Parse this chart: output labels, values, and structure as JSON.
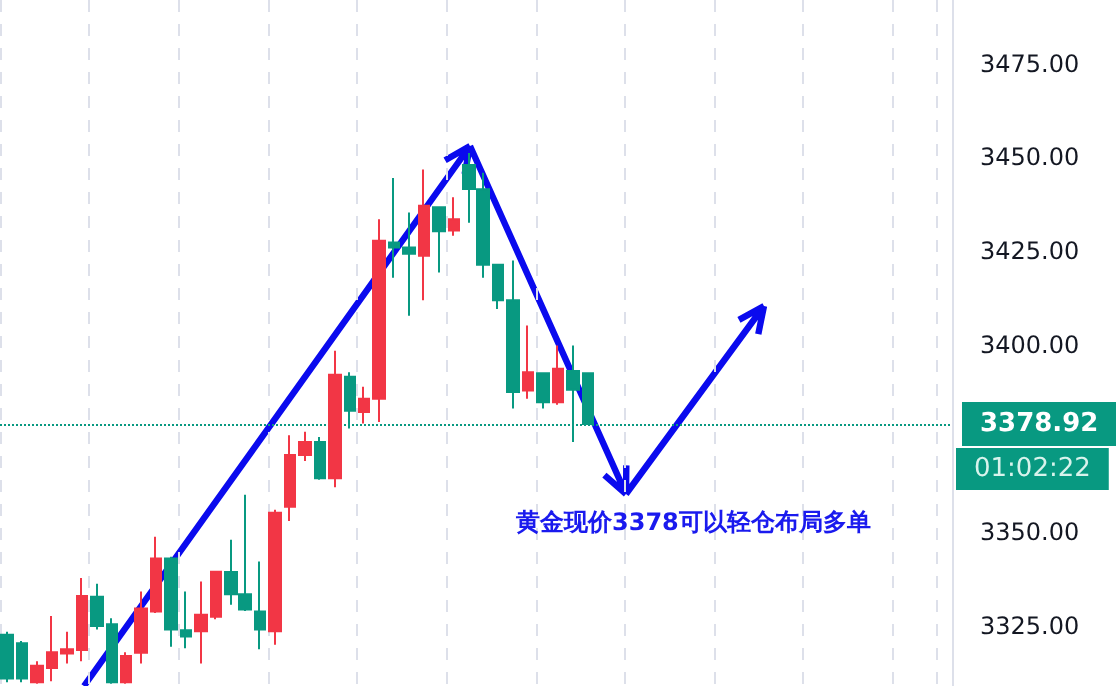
{
  "chart_data": {
    "type": "candlestick",
    "categories": [
      null,
      null,
      null,
      null,
      null,
      null,
      null,
      null,
      null,
      null,
      null,
      null,
      null,
      null,
      null,
      null,
      null,
      null,
      null,
      null,
      null,
      null,
      null,
      null,
      null,
      null,
      null,
      null,
      null,
      null,
      null,
      null,
      null,
      null,
      null,
      null,
      null,
      null,
      null,
      null,
      null,
      null,
      null,
      null,
      null,
      null,
      null,
      null,
      null,
      null,
      null,
      null,
      null,
      null,
      null,
      null,
      null,
      null,
      null,
      null,
      null,
      null,
      null,
      null
    ],
    "ohlc": [
      [
        3322.7,
        3323.5,
        3310,
        3311
      ],
      [
        3320.4,
        3321,
        3310,
        3311
      ],
      [
        3310,
        3315.6,
        3309.6,
        3314.4
      ],
      [
        3313.8,
        3327.7,
        3310.3,
        3318
      ],
      [
        3317.7,
        3323.5,
        3315,
        3318.8
      ],
      [
        3318.6,
        3337.8,
        3315.6,
        3333
      ],
      [
        3332.8,
        3336.3,
        3324.1,
        3325
      ],
      [
        3325.5,
        3327.1,
        3309.6,
        3310
      ],
      [
        3310,
        3318,
        3309.6,
        3317
      ],
      [
        3317.9,
        3334.2,
        3315,
        3329.7
      ],
      [
        3328.9,
        3348.8,
        3328.5,
        3343
      ],
      [
        3343,
        3343.5,
        3319.5,
        3324.1
      ],
      [
        3323.9,
        3334.2,
        3319.1,
        3322.2
      ],
      [
        3323.6,
        3336.9,
        3315,
        3328
      ],
      [
        3327.5,
        3339.5,
        3326.8,
        3339.5
      ],
      [
        3339.4,
        3348,
        3330.7,
        3333.5
      ],
      [
        3333.5,
        3360,
        3329,
        3329.4
      ],
      [
        3328.9,
        3342.2,
        3318.8,
        3324.1
      ],
      [
        3323.6,
        3356,
        3320,
        3355.2
      ],
      [
        3356.8,
        3375.9,
        3353,
        3370.6
      ],
      [
        3370.6,
        3376.8,
        3369,
        3374.1
      ],
      [
        3374.1,
        3375.4,
        3364,
        3364.4
      ],
      [
        3364.4,
        3398.4,
        3362,
        3392
      ],
      [
        3391.5,
        3392.7,
        3377.7,
        3382.4
      ],
      [
        3382.1,
        3388.8,
        3379,
        3385.6
      ],
      [
        3385.6,
        3433.5,
        3379.4,
        3427.8
      ],
      [
        3427.3,
        3444.5,
        3417.9,
        3426
      ],
      [
        3426,
        3435.3,
        3407.8,
        3424.3
      ],
      [
        3423.8,
        3446.8,
        3411.9,
        3437.1
      ],
      [
        3436.7,
        3437,
        3419.3,
        3430.3
      ],
      [
        3430.5,
        3439.4,
        3429.1,
        3433.5
      ],
      [
        3448,
        3451.2,
        3432.6,
        3441.6
      ],
      [
        3441.5,
        3445.9,
        3417.9,
        3421.4
      ],
      [
        3421.4,
        3421.6,
        3409.6,
        3411.9
      ],
      [
        3411.9,
        3422.5,
        3383,
        3387.4
      ],
      [
        3387.8,
        3405.2,
        3385.6,
        3392.7
      ],
      [
        3392.4,
        3392.6,
        3383,
        3384.7
      ],
      [
        3384.7,
        3399.8,
        3384,
        3393.6
      ],
      [
        3393,
        3399.8,
        3374.1,
        3388
      ],
      [
        3392.4,
        3392.6,
        3378.6,
        3378.92
      ],
      null,
      null,
      null,
      null,
      null,
      null,
      null,
      null,
      null,
      null,
      null,
      null,
      null,
      null,
      null,
      null,
      null,
      null,
      null,
      null,
      null,
      null,
      null,
      null
    ],
    "colors": [
      "#089981",
      "#089981",
      "#f23645",
      "#f23645",
      "#f23645",
      "#f23645",
      "#089981",
      "#089981",
      "#f23645",
      "#f23645",
      "#f23645",
      "#089981",
      "#089981",
      "#f23645",
      "#f23645",
      "#089981",
      "#089981",
      "#089981",
      "#f23645",
      "#f23645",
      "#f23645",
      "#089981",
      "#f23645",
      "#089981",
      "#f23645",
      "#f23645",
      "#089981",
      "#089981",
      "#f23645",
      "#089981",
      "#f23645",
      "#089981",
      "#089981",
      "#089981",
      "#089981",
      "#f23645",
      "#089981",
      "#f23645",
      "#089981",
      "#089981",
      null,
      null,
      null,
      null,
      null,
      null,
      null,
      null,
      null,
      null,
      null,
      null,
      null,
      null,
      null,
      null,
      null,
      null,
      null,
      null,
      null,
      null,
      null,
      null
    ],
    "ylim": [
      3309,
      3492
    ],
    "yticks": [
      {
        "value": 3325,
        "label": "3325.00"
      },
      {
        "value": 3350,
        "label": "3350.00"
      },
      {
        "value": 3400,
        "label": "3400.00"
      },
      {
        "value": 3425,
        "label": "3425.00"
      },
      {
        "value": 3450,
        "label": "3450.00"
      },
      {
        "value": 3475,
        "label": "3475.00"
      }
    ],
    "ref_lines": [
      {
        "axis": "y",
        "value": 3378.92,
        "label": "3378.92",
        "color": "#089981",
        "line_style": "dotted"
      }
    ],
    "annotations": [
      "黄金现价3378可以轻仓布局多单",
      "01:02:22"
    ],
    "grid": "x",
    "tick_labels": "y"
  }
}
